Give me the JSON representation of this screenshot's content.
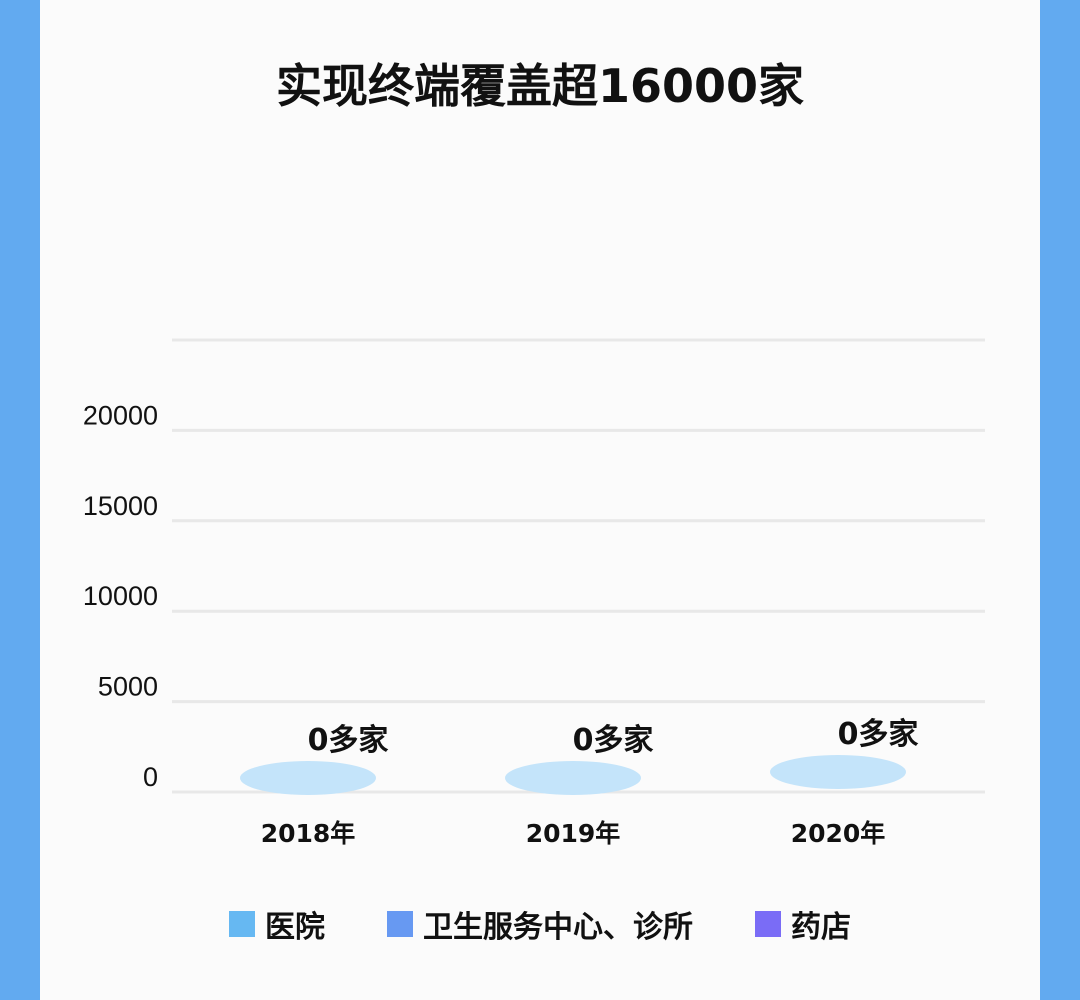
{
  "title": "实现终端覆盖超16000家",
  "colors": {
    "frame": "#62aaf0",
    "grid": "#e8e8e8",
    "base": "#c4e4fa"
  },
  "chart_data": {
    "type": "bar",
    "title": "实现终端覆盖超16000家",
    "categories": [
      "2018年",
      "2019年",
      "2020年"
    ],
    "yticks": [
      "0",
      "5000",
      "10000",
      "15000",
      "20000"
    ],
    "ylim": [
      0,
      25000
    ],
    "grid": true,
    "legend_position": "bottom",
    "series": [
      {
        "name": "医院",
        "color": "#66b8f2",
        "values": [
          0,
          0,
          0
        ]
      },
      {
        "name": "卫生服务中心、诊所",
        "color": "#6799f2",
        "values": [
          0,
          0,
          0
        ]
      },
      {
        "name": "药店",
        "color": "#7a6cf6",
        "values": [
          0,
          0,
          0
        ]
      }
    ],
    "data_labels": [
      "0多家",
      "0多家",
      "0多家"
    ]
  }
}
